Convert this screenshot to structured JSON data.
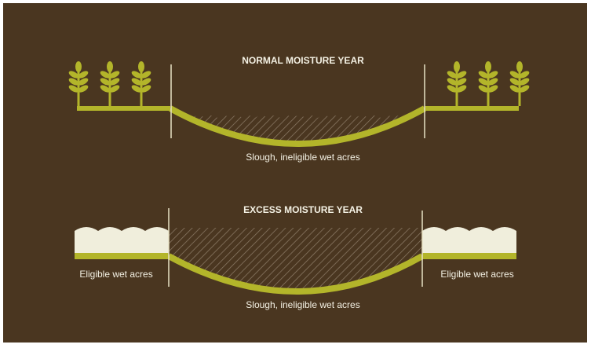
{
  "top_panel": {
    "title": "NORMAL MOISTURE YEAR",
    "slough_label": "Slough, ineligible wet acres"
  },
  "bottom_panel": {
    "title": "EXCESS MOISTURE YEAR",
    "left_label": "Eligible wet acres",
    "right_label": "Eligible wet acres",
    "slough_label": "Slough, ineligible wet acres"
  }
}
